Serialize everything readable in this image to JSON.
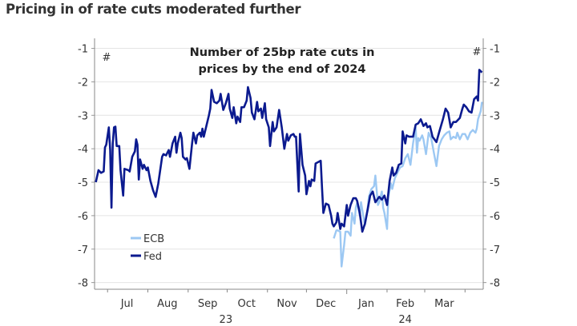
{
  "headline": "Pricing in of rate cuts moderated further",
  "chart_data": {
    "type": "line",
    "title": "Number of 25bp rate cuts in prices by the end of 2024",
    "title_lines": [
      "Number of 25bp rate cuts in",
      "prices by the end of 2024"
    ],
    "left_unit": "#",
    "right_unit": "#",
    "ylim": [
      -8.2,
      -0.7
    ],
    "yticks": [
      -1,
      -2,
      -3,
      -4,
      -5,
      -6,
      -7,
      -8
    ],
    "xlim": [
      "2023-06-21",
      "2024-04-15"
    ],
    "x_ticks": [
      "2023-07-01",
      "2023-08-01",
      "2023-09-01",
      "2023-10-01",
      "2023-11-01",
      "2023-12-01",
      "2024-01-01",
      "2024-02-01",
      "2024-03-01",
      "2024-04-01"
    ],
    "month_labels": [
      {
        "label": "Jul",
        "date": "2023-07-16"
      },
      {
        "label": "Aug",
        "date": "2023-08-16"
      },
      {
        "label": "Sep",
        "date": "2023-09-16"
      },
      {
        "label": "Oct",
        "date": "2023-10-16"
      },
      {
        "label": "Nov",
        "date": "2023-11-16"
      },
      {
        "label": "Dec",
        "date": "2023-12-16"
      },
      {
        "label": "Jan",
        "date": "2024-01-16"
      },
      {
        "label": "Feb",
        "date": "2024-02-15"
      },
      {
        "label": "Mar",
        "date": "2024-03-16"
      }
    ],
    "year_labels": [
      {
        "label": "23",
        "date": "2023-09-30"
      },
      {
        "label": "24",
        "date": "2024-02-15"
      }
    ],
    "grid": true,
    "legend_position": "bottom-left",
    "series": [
      {
        "name": "ECB",
        "color": "#9cc8f3",
        "points": [
          [
            "2023-12-22",
            -6.68
          ],
          [
            "2023-12-24",
            -6.44
          ],
          [
            "2023-12-25",
            -6.44
          ],
          [
            "2023-12-27",
            -6.48
          ],
          [
            "2023-12-28",
            -7.52
          ],
          [
            "2023-12-30",
            -6.88
          ],
          [
            "2023-12-31",
            -6.48
          ],
          [
            "2024-01-02",
            -6.48
          ],
          [
            "2024-01-04",
            -6.6
          ],
          [
            "2024-01-05",
            -5.92
          ],
          [
            "2024-01-07",
            -6.24
          ],
          [
            "2024-01-08",
            -5.76
          ],
          [
            "2024-01-09",
            -5.6
          ],
          [
            "2024-01-11",
            -6.0
          ],
          [
            "2024-01-12",
            -5.6
          ],
          [
            "2024-01-14",
            -6.08
          ],
          [
            "2024-01-15",
            -6.28
          ],
          [
            "2024-01-17",
            -5.8
          ],
          [
            "2024-01-18",
            -5.44
          ],
          [
            "2024-01-20",
            -5.2
          ],
          [
            "2024-01-22",
            -5.12
          ],
          [
            "2024-01-23",
            -4.8
          ],
          [
            "2024-01-25",
            -5.68
          ],
          [
            "2024-01-26",
            -5.6
          ],
          [
            "2024-01-28",
            -5.28
          ],
          [
            "2024-01-29",
            -5.76
          ],
          [
            "2024-01-30",
            -5.92
          ],
          [
            "2024-02-01",
            -6.4
          ],
          [
            "2024-02-02",
            -5.44
          ],
          [
            "2024-02-04",
            -5.04
          ],
          [
            "2024-02-05",
            -5.2
          ],
          [
            "2024-02-07",
            -4.88
          ],
          [
            "2024-02-09",
            -4.72
          ],
          [
            "2024-02-11",
            -4.56
          ],
          [
            "2024-02-13",
            -4.52
          ],
          [
            "2024-02-15",
            -4.28
          ],
          [
            "2024-02-17",
            -4.16
          ],
          [
            "2024-02-19",
            -4.48
          ],
          [
            "2024-02-21",
            -3.84
          ],
          [
            "2024-02-23",
            -3.36
          ],
          [
            "2024-02-24",
            -4.12
          ],
          [
            "2024-02-25",
            -3.68
          ],
          [
            "2024-02-26",
            -3.76
          ],
          [
            "2024-02-28",
            -3.6
          ],
          [
            "2024-02-29",
            -3.72
          ],
          [
            "2024-03-02",
            -4.16
          ],
          [
            "2024-03-04",
            -3.52
          ],
          [
            "2024-03-06",
            -3.68
          ],
          [
            "2024-03-08",
            -4.12
          ],
          [
            "2024-03-10",
            -4.52
          ],
          [
            "2024-03-12",
            -3.92
          ],
          [
            "2024-03-14",
            -3.72
          ],
          [
            "2024-03-16",
            -3.6
          ],
          [
            "2024-03-18",
            -3.52
          ],
          [
            "2024-03-20",
            -3.48
          ],
          [
            "2024-03-21",
            -3.72
          ],
          [
            "2024-03-23",
            -3.64
          ],
          [
            "2024-03-25",
            -3.68
          ],
          [
            "2024-03-26",
            -3.52
          ],
          [
            "2024-03-28",
            -3.72
          ],
          [
            "2024-03-30",
            -3.56
          ],
          [
            "2024-04-01",
            -3.56
          ],
          [
            "2024-04-03",
            -3.72
          ],
          [
            "2024-04-05",
            -3.52
          ],
          [
            "2024-04-07",
            -3.44
          ],
          [
            "2024-04-09",
            -3.52
          ],
          [
            "2024-04-10",
            -3.4
          ],
          [
            "2024-04-11",
            -3.12
          ],
          [
            "2024-04-13",
            -2.88
          ],
          [
            "2024-04-14",
            -2.6
          ]
        ]
      },
      {
        "name": "Fed",
        "color": "#0b1a8f",
        "points": [
          [
            "2023-06-22",
            -5.0
          ],
          [
            "2023-06-24",
            -4.64
          ],
          [
            "2023-06-26",
            -4.72
          ],
          [
            "2023-06-28",
            -4.68
          ],
          [
            "2023-06-29",
            -3.96
          ],
          [
            "2023-06-30",
            -3.88
          ],
          [
            "2023-07-02",
            -3.36
          ],
          [
            "2023-07-03",
            -4.04
          ],
          [
            "2023-07-04",
            -5.76
          ],
          [
            "2023-07-05",
            -3.84
          ],
          [
            "2023-07-06",
            -3.36
          ],
          [
            "2023-07-07",
            -3.34
          ],
          [
            "2023-07-08",
            -3.92
          ],
          [
            "2023-07-10",
            -3.92
          ],
          [
            "2023-07-11",
            -4.64
          ],
          [
            "2023-07-13",
            -5.4
          ],
          [
            "2023-07-14",
            -4.6
          ],
          [
            "2023-07-17",
            -4.64
          ],
          [
            "2023-07-18",
            -4.68
          ],
          [
            "2023-07-20",
            -4.24
          ],
          [
            "2023-07-22",
            -4.08
          ],
          [
            "2023-07-23",
            -3.72
          ],
          [
            "2023-07-24",
            -3.88
          ],
          [
            "2023-07-25",
            -4.92
          ],
          [
            "2023-07-26",
            -4.32
          ],
          [
            "2023-07-28",
            -4.6
          ],
          [
            "2023-07-29",
            -4.48
          ],
          [
            "2023-07-31",
            -4.64
          ],
          [
            "2023-08-01",
            -4.56
          ],
          [
            "2023-08-03",
            -4.96
          ],
          [
            "2023-08-05",
            -5.24
          ],
          [
            "2023-08-07",
            -5.44
          ],
          [
            "2023-08-09",
            -5.04
          ],
          [
            "2023-08-12",
            -4.24
          ],
          [
            "2023-08-13",
            -4.16
          ],
          [
            "2023-08-15",
            -4.2
          ],
          [
            "2023-08-17",
            -4.04
          ],
          [
            "2023-08-18",
            -4.24
          ],
          [
            "2023-08-20",
            -3.84
          ],
          [
            "2023-08-22",
            -3.64
          ],
          [
            "2023-08-23",
            -4.12
          ],
          [
            "2023-08-24",
            -3.84
          ],
          [
            "2023-08-26",
            -3.52
          ],
          [
            "2023-08-27",
            -3.68
          ],
          [
            "2023-08-28",
            -4.24
          ],
          [
            "2023-08-30",
            -4.32
          ],
          [
            "2023-08-31",
            -4.28
          ],
          [
            "2023-09-02",
            -4.6
          ],
          [
            "2023-09-04",
            -3.84
          ],
          [
            "2023-09-05",
            -3.52
          ],
          [
            "2023-09-07",
            -3.84
          ],
          [
            "2023-09-08",
            -3.6
          ],
          [
            "2023-09-10",
            -3.52
          ],
          [
            "2023-09-11",
            -3.64
          ],
          [
            "2023-09-12",
            -3.4
          ],
          [
            "2023-09-13",
            -3.64
          ],
          [
            "2023-09-15",
            -3.32
          ],
          [
            "2023-09-17",
            -3.0
          ],
          [
            "2023-09-18",
            -2.8
          ],
          [
            "2023-09-19",
            -2.24
          ],
          [
            "2023-09-21",
            -2.6
          ],
          [
            "2023-09-23",
            -2.64
          ],
          [
            "2023-09-25",
            -2.56
          ],
          [
            "2023-09-26",
            -2.36
          ],
          [
            "2023-09-28",
            -2.84
          ],
          [
            "2023-09-30",
            -2.64
          ],
          [
            "2023-10-02",
            -2.36
          ],
          [
            "2023-10-03",
            -2.8
          ],
          [
            "2023-10-05",
            -3.08
          ],
          [
            "2023-10-06",
            -2.76
          ],
          [
            "2023-10-08",
            -3.24
          ],
          [
            "2023-10-09",
            -3.04
          ],
          [
            "2023-10-11",
            -3.2
          ],
          [
            "2023-10-12",
            -2.76
          ],
          [
            "2023-10-14",
            -2.76
          ],
          [
            "2023-10-16",
            -2.56
          ],
          [
            "2023-10-17",
            -2.16
          ],
          [
            "2023-10-19",
            -2.48
          ],
          [
            "2023-10-20",
            -2.92
          ],
          [
            "2023-10-22",
            -3.12
          ],
          [
            "2023-10-24",
            -2.6
          ],
          [
            "2023-10-25",
            -2.88
          ],
          [
            "2023-10-27",
            -2.8
          ],
          [
            "2023-10-28",
            -3.08
          ],
          [
            "2023-10-30",
            -2.64
          ],
          [
            "2023-10-31",
            -3.12
          ],
          [
            "2023-11-02",
            -3.36
          ],
          [
            "2023-11-03",
            -3.92
          ],
          [
            "2023-11-05",
            -3.2
          ],
          [
            "2023-11-06",
            -3.48
          ],
          [
            "2023-11-08",
            -3.36
          ],
          [
            "2023-11-10",
            -2.84
          ],
          [
            "2023-11-12",
            -3.36
          ],
          [
            "2023-11-14",
            -4.0
          ],
          [
            "2023-11-16",
            -3.56
          ],
          [
            "2023-11-17",
            -3.76
          ],
          [
            "2023-11-19",
            -3.6
          ],
          [
            "2023-11-21",
            -3.56
          ],
          [
            "2023-11-22",
            -3.64
          ],
          [
            "2023-11-23",
            -3.64
          ],
          [
            "2023-11-25",
            -5.28
          ],
          [
            "2023-11-26",
            -3.56
          ],
          [
            "2023-11-28",
            -4.48
          ],
          [
            "2023-11-30",
            -4.8
          ],
          [
            "2023-12-01",
            -5.36
          ],
          [
            "2023-12-03",
            -4.96
          ],
          [
            "2023-12-04",
            -5.12
          ],
          [
            "2023-12-05",
            -4.92
          ],
          [
            "2023-12-07",
            -4.96
          ],
          [
            "2023-12-08",
            -4.44
          ],
          [
            "2023-12-10",
            -4.4
          ],
          [
            "2023-12-12",
            -4.36
          ],
          [
            "2023-12-13",
            -5.2
          ],
          [
            "2023-12-14",
            -5.92
          ],
          [
            "2023-12-16",
            -5.64
          ],
          [
            "2023-12-18",
            -5.68
          ],
          [
            "2023-12-20",
            -6.0
          ],
          [
            "2023-12-21",
            -6.24
          ],
          [
            "2023-12-22",
            -6.32
          ],
          [
            "2023-12-24",
            -6.2
          ],
          [
            "2023-12-25",
            -5.92
          ],
          [
            "2023-12-27",
            -6.4
          ],
          [
            "2023-12-28",
            -6.24
          ],
          [
            "2023-12-30",
            -6.32
          ],
          [
            "2024-01-01",
            -5.68
          ],
          [
            "2024-01-02",
            -6.0
          ],
          [
            "2024-01-04",
            -5.68
          ],
          [
            "2024-01-06",
            -5.48
          ],
          [
            "2024-01-08",
            -5.48
          ],
          [
            "2024-01-09",
            -5.56
          ],
          [
            "2024-01-11",
            -5.92
          ],
          [
            "2024-01-13",
            -6.48
          ],
          [
            "2024-01-15",
            -6.24
          ],
          [
            "2024-01-17",
            -5.84
          ],
          [
            "2024-01-19",
            -5.4
          ],
          [
            "2024-01-21",
            -5.28
          ],
          [
            "2024-01-23",
            -5.6
          ],
          [
            "2024-01-26",
            -5.44
          ],
          [
            "2024-01-28",
            -5.52
          ],
          [
            "2024-01-30",
            -5.4
          ],
          [
            "2024-02-01",
            -5.68
          ],
          [
            "2024-02-03",
            -4.96
          ],
          [
            "2024-02-05",
            -4.56
          ],
          [
            "2024-02-06",
            -4.8
          ],
          [
            "2024-02-08",
            -4.72
          ],
          [
            "2024-02-10",
            -4.48
          ],
          [
            "2024-02-12",
            -4.44
          ],
          [
            "2024-02-13",
            -3.48
          ],
          [
            "2024-02-15",
            -3.84
          ],
          [
            "2024-02-16",
            -3.6
          ],
          [
            "2024-02-18",
            -3.64
          ],
          [
            "2024-02-21",
            -3.64
          ],
          [
            "2024-02-23",
            -3.28
          ],
          [
            "2024-02-25",
            -3.24
          ],
          [
            "2024-02-27",
            -3.12
          ],
          [
            "2024-02-29",
            -3.32
          ],
          [
            "2024-03-02",
            -3.24
          ],
          [
            "2024-03-03",
            -3.36
          ],
          [
            "2024-03-05",
            -3.32
          ],
          [
            "2024-03-07",
            -3.64
          ],
          [
            "2024-03-10",
            -3.8
          ],
          [
            "2024-03-12",
            -3.52
          ],
          [
            "2024-03-15",
            -3.12
          ],
          [
            "2024-03-17",
            -2.8
          ],
          [
            "2024-03-19",
            -2.92
          ],
          [
            "2024-03-21",
            -3.36
          ],
          [
            "2024-03-23",
            -3.2
          ],
          [
            "2024-03-25",
            -3.2
          ],
          [
            "2024-03-26",
            -3.16
          ],
          [
            "2024-03-28",
            -3.08
          ],
          [
            "2024-03-30",
            -2.8
          ],
          [
            "2024-03-31",
            -2.68
          ],
          [
            "2024-04-02",
            -2.76
          ],
          [
            "2024-04-04",
            -2.88
          ],
          [
            "2024-04-06",
            -2.92
          ],
          [
            "2024-04-08",
            -2.52
          ],
          [
            "2024-04-10",
            -2.44
          ],
          [
            "2024-04-11",
            -2.56
          ],
          [
            "2024-04-12",
            -1.64
          ],
          [
            "2024-04-13",
            -1.68
          ],
          [
            "2024-04-14",
            -1.72
          ]
        ]
      }
    ]
  }
}
